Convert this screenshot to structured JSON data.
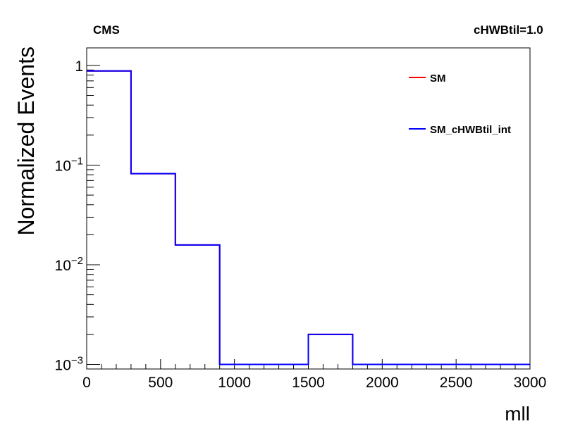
{
  "header": {
    "left_label": "CMS",
    "right_label": "cHWBtil=1.0"
  },
  "chart_data": {
    "type": "line",
    "style": "step-histogram",
    "title": "",
    "xlabel": "mll",
    "ylabel": "Normalized Events",
    "xlim": [
      0,
      3000
    ],
    "ylim": [
      0.0009,
      1.5
    ],
    "yscale": "log",
    "grid": false,
    "legend_position": "top-right",
    "x_ticks": [
      0,
      500,
      1000,
      1500,
      2000,
      2500,
      3000
    ],
    "x_tick_labels": [
      "0",
      "500",
      "1000",
      "1500",
      "2000",
      "2500",
      "3000"
    ],
    "y_ticks": [
      {
        "value": 1,
        "base": "1",
        "exp": ""
      },
      {
        "value": 0.1,
        "base": "10",
        "exp": "−1"
      },
      {
        "value": 0.01,
        "base": "10",
        "exp": "−2"
      },
      {
        "value": 0.001,
        "base": "10",
        "exp": "−3"
      }
    ],
    "bin_edges": [
      0,
      300,
      600,
      900,
      1200,
      1500,
      1800,
      2100,
      2400,
      2700,
      3000
    ],
    "series": [
      {
        "name": "SM",
        "color": "#ff0000",
        "values": [
          0.88,
          0.082,
          0.0158,
          0.001,
          0.001,
          0.002,
          0.001,
          0.001,
          0.001,
          0.001
        ]
      },
      {
        "name": "SM_cHWBtil_int",
        "color": "#0000ff",
        "values": [
          0.88,
          0.082,
          0.0158,
          0.001,
          0.001,
          0.002,
          0.001,
          0.001,
          0.001,
          0.001
        ]
      }
    ]
  }
}
